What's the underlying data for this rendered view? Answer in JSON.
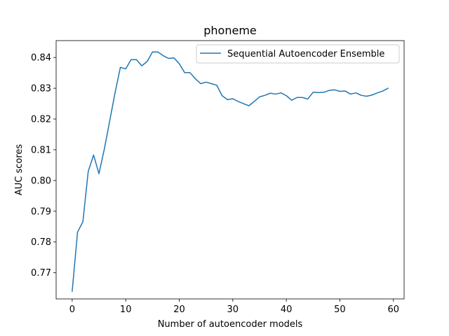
{
  "chart_data": {
    "type": "line",
    "title": "phoneme",
    "xlabel": "Number of autoencoder models",
    "ylabel": "AUC scores",
    "xlim": [
      -3,
      62
    ],
    "ylim": [
      0.7615,
      0.8455
    ],
    "xticks": [
      0,
      10,
      20,
      30,
      40,
      50,
      60
    ],
    "xtick_labels": [
      "0",
      "10",
      "20",
      "30",
      "40",
      "50",
      "60"
    ],
    "yticks": [
      0.77,
      0.78,
      0.79,
      0.8,
      0.81,
      0.82,
      0.83,
      0.84
    ],
    "ytick_labels": [
      "0.77",
      "0.78",
      "0.79",
      "0.80",
      "0.81",
      "0.82",
      "0.83",
      "0.84"
    ],
    "grid": false,
    "legend_position": "top-right",
    "series": [
      {
        "name": "Sequential Autoencoder Ensemble",
        "color": "#1f77b4",
        "x": [
          0,
          1,
          2,
          3,
          4,
          5,
          6,
          7,
          8,
          9,
          10,
          11,
          12,
          13,
          14,
          15,
          16,
          17,
          18,
          19,
          20,
          21,
          22,
          23,
          24,
          25,
          26,
          27,
          28,
          29,
          30,
          31,
          32,
          33,
          34,
          35,
          36,
          37,
          38,
          39,
          40,
          41,
          42,
          43,
          44,
          45,
          46,
          47,
          48,
          49,
          50,
          51,
          52,
          53,
          54,
          55,
          56,
          57,
          58,
          59
        ],
        "values": [
          0.764,
          0.7832,
          0.7866,
          0.803,
          0.8083,
          0.8022,
          0.8102,
          0.8193,
          0.8285,
          0.8368,
          0.8363,
          0.8393,
          0.8393,
          0.8373,
          0.8387,
          0.8418,
          0.8418,
          0.8406,
          0.8397,
          0.8399,
          0.838,
          0.8351,
          0.8351,
          0.8331,
          0.8315,
          0.832,
          0.8315,
          0.831,
          0.8276,
          0.8263,
          0.8266,
          0.8257,
          0.825,
          0.8243,
          0.8257,
          0.8272,
          0.8277,
          0.8284,
          0.8281,
          0.8285,
          0.8276,
          0.8261,
          0.827,
          0.827,
          0.8265,
          0.8287,
          0.8286,
          0.8287,
          0.8293,
          0.8295,
          0.829,
          0.8291,
          0.8281,
          0.8285,
          0.8277,
          0.8274,
          0.8278,
          0.8285,
          0.8291,
          0.83
        ]
      }
    ]
  }
}
